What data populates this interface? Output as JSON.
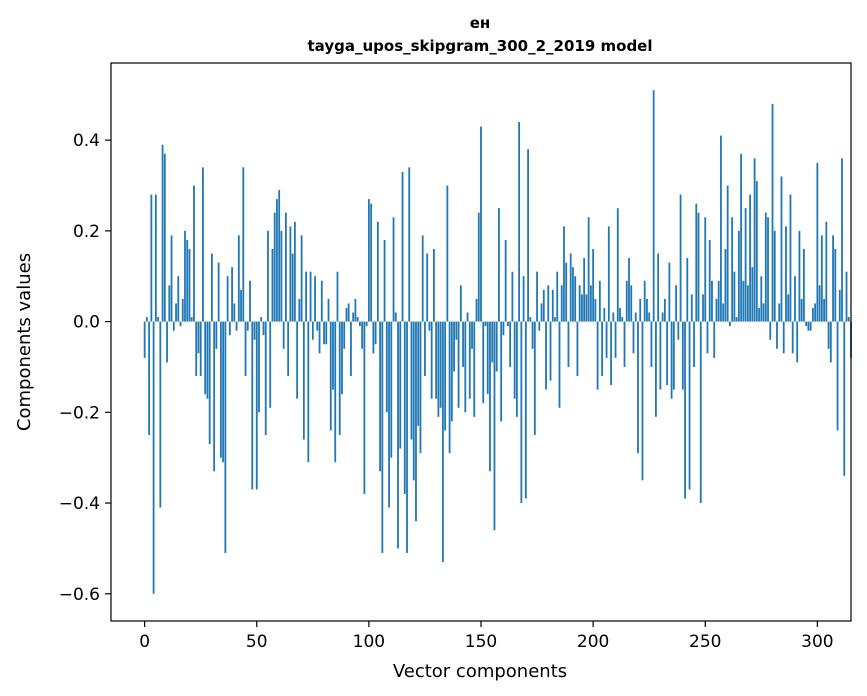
{
  "chart_data": {
    "type": "bar",
    "title": "ен",
    "subtitle": "tayga_upos_skipgram_300_2_2019 model",
    "xlabel": "Vector components",
    "ylabel": "Components values",
    "xlim": [
      -15,
      315
    ],
    "ylim": [
      -0.66,
      0.57
    ],
    "xticks": [
      0,
      50,
      100,
      150,
      200,
      250,
      300
    ],
    "xtick_labels": [
      "0",
      "50",
      "100",
      "150",
      "200",
      "250",
      "300"
    ],
    "yticks": [
      -0.6,
      -0.4,
      -0.2,
      0.0,
      0.2,
      0.4
    ],
    "ytick_labels": [
      "−0.6",
      "−0.4",
      "−0.2",
      "0.0",
      "0.2",
      "0.4"
    ],
    "bar_color": "#1f77b4",
    "values": [
      -0.08,
      0.01,
      -0.25,
      0.28,
      -0.6,
      0.28,
      0.01,
      -0.41,
      0.39,
      0.37,
      -0.09,
      0.08,
      0.19,
      -0.02,
      0.04,
      0.1,
      -0.01,
      0.05,
      0.2,
      0.18,
      0.16,
      0.01,
      0.3,
      -0.12,
      -0.07,
      -0.12,
      0.34,
      -0.16,
      -0.17,
      -0.27,
      0.15,
      -0.33,
      -0.06,
      0.13,
      -0.3,
      -0.31,
      -0.51,
      0.1,
      -0.03,
      0.12,
      0.04,
      -0.02,
      0.19,
      0.07,
      0.34,
      -0.12,
      -0.02,
      0.09,
      -0.37,
      -0.04,
      -0.37,
      -0.2,
      0.01,
      -0.03,
      -0.25,
      0.2,
      -0.19,
      0.16,
      0.24,
      0.27,
      0.29,
      0.2,
      -0.06,
      0.24,
      -0.12,
      0.21,
      0.15,
      0.22,
      -0.17,
      0.05,
      0.19,
      -0.26,
      0.11,
      -0.31,
      0.11,
      -0.04,
      0.1,
      -0.02,
      -0.07,
      0.09,
      -0.05,
      -0.05,
      0.05,
      -0.24,
      -0.15,
      -0.31,
      0.11,
      -0.25,
      -0.16,
      -0.06,
      0.03,
      0.04,
      -0.12,
      0.02,
      0.05,
      0.01,
      -0.01,
      -0.06,
      -0.38,
      -0.01,
      0.27,
      0.26,
      -0.07,
      -0.05,
      0.22,
      -0.33,
      -0.51,
      0.18,
      -0.2,
      -0.41,
      -0.3,
      0.23,
      0.02,
      -0.5,
      -0.28,
      0.33,
      -0.38,
      -0.51,
      0.34,
      -0.26,
      -0.35,
      -0.44,
      -0.23,
      -0.29,
      0.19,
      -0.12,
      0.15,
      -0.02,
      -0.17,
      0.16,
      -0.17,
      -0.21,
      -0.19,
      -0.53,
      -0.24,
      0.3,
      -0.29,
      -0.22,
      -0.11,
      -0.04,
      -0.19,
      0.08,
      -0.1,
      -0.2,
      0.02,
      -0.17,
      -0.06,
      -0.21,
      0.05,
      0.24,
      0.43,
      -0.18,
      -0.01,
      -0.16,
      -0.33,
      -0.09,
      -0.46,
      -0.11,
      0.25,
      -0.22,
      -0.03,
      0.18,
      -0.01,
      -0.1,
      0.11,
      -0.17,
      -0.21,
      0.44,
      -0.4,
      0.1,
      -0.39,
      0.38,
      0.01,
      -0.06,
      -0.25,
      0.11,
      -0.02,
      0.04,
      0.07,
      -0.15,
      0.08,
      -0.13,
      0.07,
      0.01,
      0.11,
      -0.19,
      0.08,
      0.21,
      0.13,
      -0.1,
      0.15,
      0.12,
      0.1,
      -0.12,
      0.08,
      0.06,
      0.14,
      0.06,
      0.23,
      0.08,
      0.16,
      0.05,
      -0.15,
      0.09,
      -0.12,
      0.03,
      -0.08,
      0.21,
      -0.14,
      0.02,
      -0.08,
      0.25,
      0.03,
      0.01,
      -0.1,
      0.09,
      0.14,
      0.08,
      -0.07,
      0.02,
      -0.29,
      0.05,
      -0.35,
      0.09,
      0.05,
      0.02,
      -0.1,
      0.51,
      -0.21,
      0.15,
      -0.15,
      0.02,
      0.05,
      -0.14,
      0.13,
      -0.17,
      -0.15,
      0.08,
      -0.04,
      0.28,
      -0.15,
      -0.39,
      0.14,
      -0.37,
      0.06,
      -0.1,
      0.26,
      0.24,
      -0.4,
      0.06,
      0.23,
      -0.07,
      0.18,
      0.09,
      -0.08,
      0.05,
      0.09,
      0.41,
      0.04,
      0.16,
      0.3,
      -0.01,
      0.23,
      0.11,
      0.01,
      0.2,
      0.37,
      0.09,
      0.25,
      0.08,
      0.28,
      0.12,
      0.36,
      0.31,
      0.03,
      0.1,
      0.04,
      0.24,
      0.23,
      -0.04,
      0.48,
      0.2,
      -0.06,
      0.04,
      0.32,
      -0.07,
      0.21,
      0.06,
      0.28,
      -0.07,
      0.1,
      -0.09,
      0.2,
      0.05,
      0.16,
      -0.01,
      -0.02,
      -0.02,
      0.03,
      0.04,
      0.35,
      0.08,
      0.19,
      0.05,
      0.22,
      -0.06,
      -0.09,
      0.19,
      0.16,
      -0.24,
      0.07,
      0.36,
      -0.34,
      0.11,
      0.01,
      -0.08
    ]
  }
}
